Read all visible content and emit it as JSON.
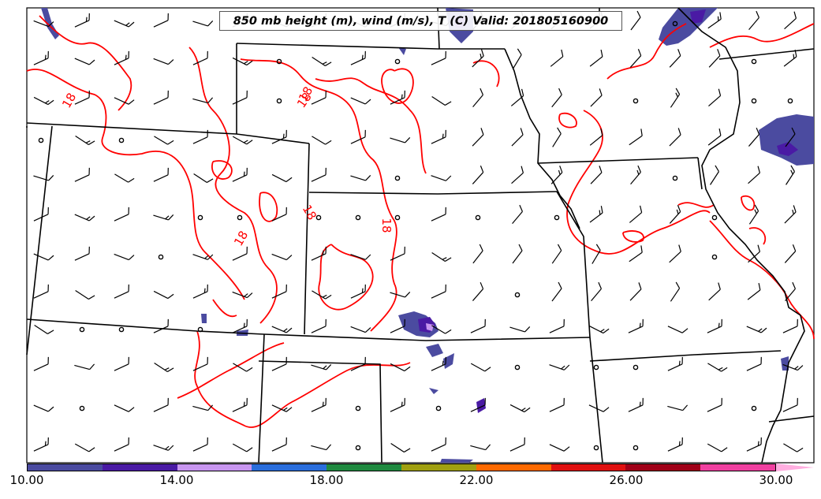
{
  "title": "850 mb height (m), wind (m/s), T (C) Valid: 201805160900",
  "contour_labels": [
    "18",
    "18",
    "18",
    "18",
    "18",
    "18"
  ],
  "colorbar": {
    "colors": [
      "#4b4ba0",
      "#4a1aa4",
      "#c896f0",
      "#2a6edc",
      "#208a40",
      "#a0a010",
      "#ff6a00",
      "#e01010",
      "#a00018",
      "#f040a0"
    ],
    "extend_color": "#ffaee0",
    "ticks": [
      "10.00",
      "14.00",
      "18.00",
      "22.00",
      "26.00",
      "30.00"
    ]
  },
  "style": {
    "contour_color": "#ff0000",
    "border_color": "#000000",
    "barb_color": "#000000"
  }
}
